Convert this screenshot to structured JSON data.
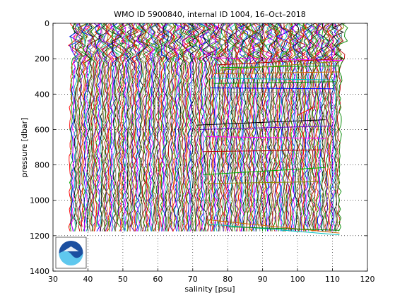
{
  "chart_data": {
    "type": "line",
    "title": "WMO ID 5900840, internal ID 1004, 16–Oct–2018",
    "xlabel": "salinity [psu]",
    "ylabel": "pressure [dbar]",
    "xlim": [
      30,
      120
    ],
    "ylim": [
      0,
      1400
    ],
    "y_reversed": true,
    "grid": true,
    "xticks": [
      30,
      40,
      50,
      60,
      70,
      80,
      90,
      100,
      110,
      120
    ],
    "yticks": [
      0,
      200,
      400,
      600,
      800,
      1000,
      1200,
      1400
    ],
    "profile_count": 250,
    "dense_band": {
      "left_edge": [
        [
          0,
          35.5
        ],
        [
          200,
          35.5
        ],
        [
          460,
          35.0
        ],
        [
          1200,
          34.8
        ]
      ],
      "right_edge": [
        [
          0,
          112.8
        ],
        [
          200,
          112.6
        ],
        [
          380,
          112.2
        ],
        [
          1200,
          112.0
        ]
      ]
    },
    "inner_edge": [
      [
        0,
        110.5
      ],
      [
        200,
        109.5
      ],
      [
        400,
        108.5
      ],
      [
        600,
        108.0
      ],
      [
        800,
        107.5
      ],
      [
        1000,
        107.2
      ],
      [
        1200,
        107.0
      ]
    ],
    "outlier_lines": [
      {
        "x": [
          76,
          113
        ],
        "y": [
          195,
          210
        ]
      },
      {
        "x": [
          77,
          113
        ],
        "y": [
          235,
          200
        ]
      },
      {
        "x": [
          78,
          112
        ],
        "y": [
          250,
          240
        ]
      },
      {
        "x": [
          78,
          112
        ],
        "y": [
          265,
          215
        ]
      },
      {
        "x": [
          76,
          112
        ],
        "y": [
          285,
          275
        ]
      },
      {
        "x": [
          75,
          111
        ],
        "y": [
          310,
          320
        ]
      },
      {
        "x": [
          76,
          111
        ],
        "y": [
          340,
          330
        ]
      },
      {
        "x": [
          75,
          110
        ],
        "y": [
          365,
          370
        ]
      },
      {
        "x": [
          80,
          111
        ],
        "y": [
          390,
          395
        ]
      },
      {
        "x": [
          100,
          105
        ],
        "y": [
          520,
          470
        ]
      },
      {
        "x": [
          71,
          108
        ],
        "y": [
          575,
          545
        ]
      },
      {
        "x": [
          72,
          110
        ],
        "y": [
          600,
          580
        ]
      },
      {
        "x": [
          74,
          108
        ],
        "y": [
          640,
          650
        ]
      },
      {
        "x": [
          73,
          107
        ],
        "y": [
          725,
          715
        ]
      },
      {
        "x": [
          73,
          108
        ],
        "y": [
          855,
          815
        ]
      },
      {
        "x": [
          74,
          106
        ],
        "y": [
          905,
          895
        ]
      },
      {
        "x": [
          74,
          112
        ],
        "y": [
          1110,
          1185
        ]
      },
      {
        "x": [
          75,
          112
        ],
        "y": [
          1135,
          1195
        ]
      },
      {
        "x": [
          80,
          112
        ],
        "y": [
          1150,
          1170
        ]
      }
    ]
  },
  "logo": {
    "text": "NOAA"
  },
  "colors": {
    "palette": [
      "#ff0000",
      "#00aa00",
      "#0000ff",
      "#ff00ff",
      "#00bfbf",
      "#000000",
      "#888800",
      "#808080",
      "#bb0000",
      "#008800",
      "#6600cc",
      "#cc6600"
    ],
    "grid": "#000000",
    "logo_blue": "#1b4fa0",
    "logo_light_blue": "#5fc8ee"
  }
}
